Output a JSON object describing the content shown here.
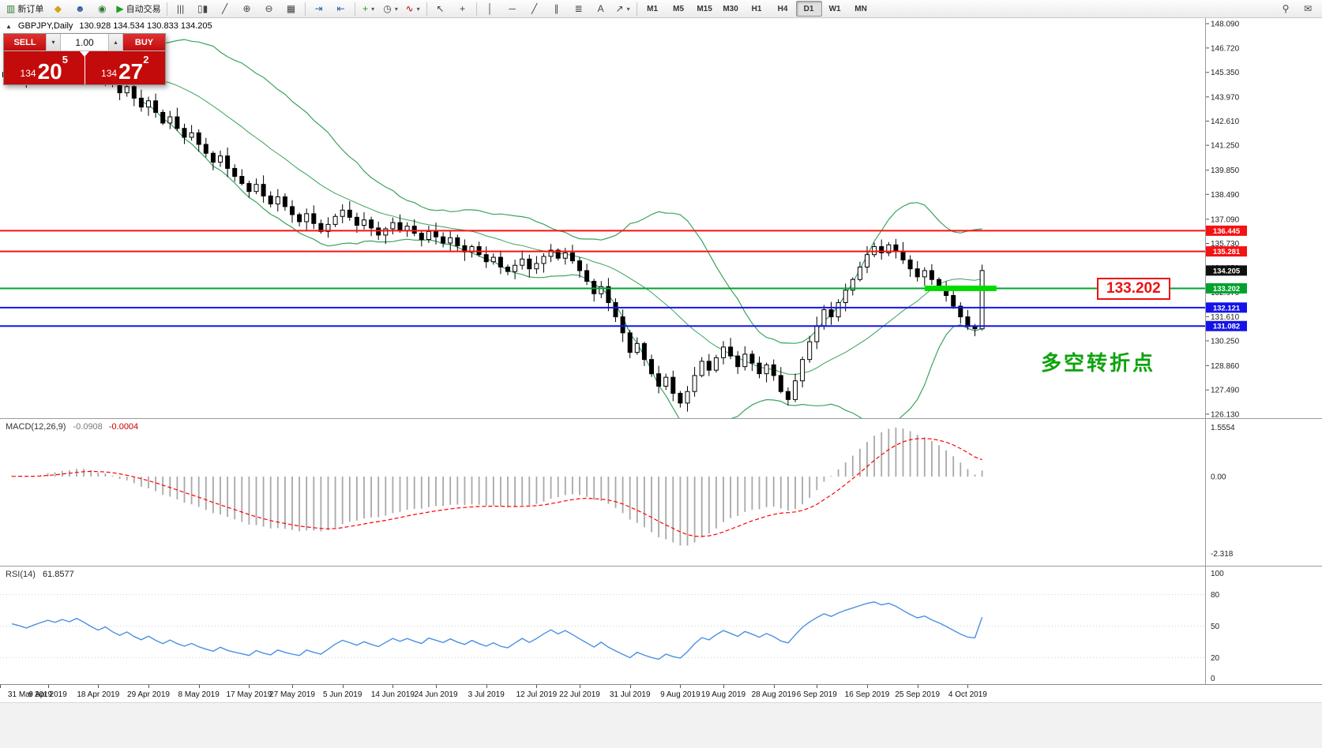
{
  "toolbar": {
    "buttons": [
      {
        "name": "new-order-button",
        "icon": "candlestick-plus-icon",
        "label": "新订单"
      },
      {
        "name": "market-button",
        "icon": "helmet-icon"
      },
      {
        "name": "signals-button",
        "icon": "person-icon"
      },
      {
        "name": "community-button",
        "icon": "globe-icon"
      },
      {
        "name": "autotrading-button",
        "icon": "play-icon",
        "label": "自动交易"
      },
      {
        "sep": true
      },
      {
        "name": "bar-chart-button",
        "icon": "bars-icon"
      },
      {
        "name": "candle-chart-button",
        "icon": "candles-icon"
      },
      {
        "name": "line-chart-button",
        "icon": "line-icon"
      },
      {
        "name": "zoom-in-button",
        "icon": "zoom-in-icon"
      },
      {
        "name": "zoom-out-button",
        "icon": "zoom-out-icon"
      },
      {
        "name": "strategy-tester-button",
        "icon": "grid-icon"
      },
      {
        "sep": true
      },
      {
        "name": "autoscroll-button",
        "icon": "autoscroll-icon"
      },
      {
        "name": "chart-shift-button",
        "icon": "chart-shift-icon"
      },
      {
        "sep": true
      },
      {
        "name": "new-chart-button",
        "icon": "chart-plus-icon",
        "dropdown": true
      },
      {
        "name": "profiles-button",
        "icon": "clock-icon",
        "dropdown": true
      },
      {
        "name": "indicators-button",
        "icon": "indicator-icon",
        "dropdown": true
      },
      {
        "sep": true
      },
      {
        "name": "cursor-button",
        "icon": "cursor-icon"
      },
      {
        "name": "crosshair-button",
        "icon": "crosshair-icon"
      },
      {
        "sep": true
      },
      {
        "name": "vertical-line-button",
        "icon": "vertical-line-icon"
      },
      {
        "name": "horizontal-line-button",
        "icon": "horizontal-line-icon"
      },
      {
        "name": "trendline-button",
        "icon": "trendline-icon"
      },
      {
        "name": "channel-button",
        "icon": "channel-icon"
      },
      {
        "name": "fibonacci-button",
        "icon": "fibonacci-icon"
      },
      {
        "name": "text-button",
        "icon": "text-icon"
      },
      {
        "name": "arrows-button",
        "icon": "arrows-icon",
        "dropdown": true
      },
      {
        "sep": true
      }
    ],
    "timeframes": [
      "M1",
      "M5",
      "M15",
      "M30",
      "H1",
      "H4",
      "D1",
      "W1",
      "MN"
    ],
    "active_timeframe": "D1",
    "right_buttons": [
      {
        "name": "search-button",
        "icon": "search-icon"
      },
      {
        "name": "chat-button",
        "icon": "chat-icon"
      }
    ]
  },
  "trade_panel": {
    "sell_label": "SELL",
    "buy_label": "BUY",
    "volume": "1.00",
    "bid": "134.205",
    "ask": "134.272",
    "bid_prefix": "134",
    "bid_big": "20",
    "bid_sup": "5",
    "ask_prefix": "134",
    "ask_big": "27",
    "ask_sup": "2"
  },
  "chart": {
    "title": "GBPJPY,Daily",
    "ohlc_text": "130.928 134.534 130.833 134.205",
    "annotation": "多空转折点",
    "annotation_color": "#0da30d",
    "price_label_box": "133.202",
    "price_label_color": "#ee1111"
  },
  "chart_data": {
    "type": "candlestick",
    "symbol": "GBPJPY",
    "timeframe": "Daily",
    "current_ohlc": {
      "open": 130.928,
      "high": 134.534,
      "low": 130.833,
      "close": 134.205
    },
    "closes": [
      145.1,
      145.45,
      145.2,
      144.85,
      145.25,
      145.6,
      145.95,
      145.7,
      146.1,
      145.85,
      146.3,
      145.9,
      145.4,
      144.95,
      145.3,
      144.7,
      144.2,
      144.55,
      143.9,
      143.4,
      143.75,
      143.1,
      142.5,
      142.85,
      142.2,
      141.7,
      141.95,
      141.3,
      140.8,
      140.3,
      140.65,
      139.95,
      139.5,
      139.1,
      138.65,
      139.05,
      138.4,
      137.95,
      138.35,
      137.8,
      137.35,
      136.95,
      137.4,
      136.85,
      136.4,
      136.8,
      137.25,
      137.6,
      137.2,
      136.75,
      137.05,
      136.6,
      136.2,
      136.55,
      136.9,
      136.45,
      136.7,
      136.3,
      135.95,
      136.4,
      136.1,
      135.75,
      136.05,
      135.6,
      135.25,
      135.55,
      135.1,
      134.7,
      134.95,
      134.4,
      134.15,
      134.5,
      134.85,
      134.3,
      134.6,
      135.0,
      135.35,
      134.9,
      135.2,
      134.75,
      134.2,
      133.6,
      132.9,
      133.3,
      132.4,
      131.6,
      130.7,
      129.6,
      130.1,
      129.2,
      128.4,
      127.7,
      128.2,
      127.3,
      126.75,
      127.4,
      128.3,
      129.1,
      128.6,
      129.3,
      129.9,
      129.4,
      128.8,
      129.5,
      129.0,
      128.4,
      128.9,
      128.3,
      127.4,
      126.95,
      128.0,
      129.2,
      130.2,
      131.1,
      132.0,
      131.6,
      132.4,
      133.1,
      133.7,
      134.4,
      135.1,
      135.55,
      135.2,
      135.65,
      135.3,
      134.8,
      134.3,
      133.85,
      134.2,
      133.7,
      133.3,
      132.8,
      132.2,
      131.6,
      131.05,
      130.928,
      134.205
    ],
    "price_scale_ticks": [
      "148.090",
      "146.720",
      "145.350",
      "143.970",
      "142.610",
      "141.250",
      "139.850",
      "138.490",
      "137.090",
      "135.730",
      "134.350",
      "132.970",
      "131.610",
      "130.250",
      "128.860",
      "127.490",
      "126.130"
    ],
    "hlines": [
      {
        "price": 136.445,
        "label": "136.445",
        "color": "#f51212",
        "name": "resistance-line-upper"
      },
      {
        "price": 135.281,
        "label": "135.281",
        "color": "#f51212",
        "name": "resistance-line-lower"
      },
      {
        "price": 133.202,
        "label": "133.202",
        "color": "#00a22e",
        "name": "pivot-line"
      },
      {
        "price": 132.121,
        "label": "132.121",
        "color": "#1414e8",
        "name": "support-line-upper"
      },
      {
        "price": 131.082,
        "label": "131.082",
        "color": "#1414e8",
        "name": "support-line-lower"
      }
    ],
    "highlight_segment": {
      "price": 133.202,
      "from_bar": 128,
      "to_bar": 138,
      "color": "#00dc00"
    },
    "current_price_tag": {
      "label": "134.205",
      "bg": "#101010"
    },
    "indicators": {
      "bollinger": {
        "period": 20,
        "deviation": 2,
        "color": "#3aa35c"
      },
      "macd": {
        "name": "MACD(12,26,9)",
        "value1": "-0.0908",
        "value2": "-0.0004",
        "scale_max": "1.5554",
        "scale_zero": "0.00",
        "scale_min": "-2.318",
        "histogram_color": "#a8a8a8",
        "signal_color": "#ff0000"
      },
      "rsi": {
        "name": "RSI(14)",
        "value": "61.8577",
        "color": "#4a90e2",
        "scale_labels": [
          "100",
          "80",
          "50",
          "20",
          "0"
        ],
        "levels": [
          80,
          50,
          20
        ]
      }
    },
    "x_axis": [
      {
        "label": "31 Mar 2019",
        "i": -1
      },
      {
        "label": "9 Apr 2019",
        "i": 6
      },
      {
        "label": "18 Apr 2019",
        "i": 13
      },
      {
        "label": "29 Apr 2019",
        "i": 20
      },
      {
        "label": "8 May 2019",
        "i": 27
      },
      {
        "label": "17 May 2019",
        "i": 34
      },
      {
        "label": "27 May 2019",
        "i": 40
      },
      {
        "label": "5 Jun 2019",
        "i": 47
      },
      {
        "label": "14 Jun 2019",
        "i": 54
      },
      {
        "label": "24 Jun 2019",
        "i": 60
      },
      {
        "label": "3 Jul 2019",
        "i": 67
      },
      {
        "label": "12 Jul 2019",
        "i": 74
      },
      {
        "label": "22 Jul 2019",
        "i": 80
      },
      {
        "label": "31 Jul 2019",
        "i": 87
      },
      {
        "label": "9 Aug 2019",
        "i": 94
      },
      {
        "label": "19 Aug 2019",
        "i": 100
      },
      {
        "label": "28 Aug 2019",
        "i": 107
      },
      {
        "label": "6 Sep 2019",
        "i": 113
      },
      {
        "label": "16 Sep 2019",
        "i": 120
      },
      {
        "label": "25 Sep 2019",
        "i": 127
      },
      {
        "label": "4 Oct 2019",
        "i": 134
      }
    ]
  }
}
